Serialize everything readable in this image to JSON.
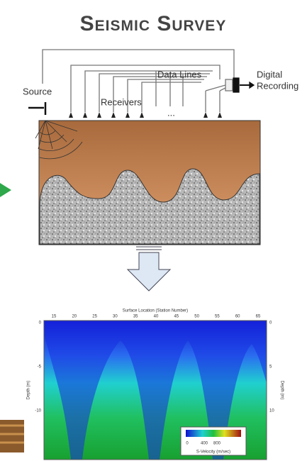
{
  "header": {
    "title": "Seismic Survey"
  },
  "diagram": {
    "source": "Source",
    "receivers": "Receivers",
    "data_lines": "Data Lines",
    "digital": "Digital",
    "recording": "Recording",
    "ellipsis": "..."
  },
  "section": {
    "x_label": "Surface Location (Station Number)",
    "x_ticks": [
      "15",
      "20",
      "25",
      "30",
      "35",
      "40",
      "45",
      "50",
      "55",
      "60",
      "65"
    ],
    "y_label_left": "Depth (m)",
    "y_ticks_left": [
      "0",
      "-5",
      "-10"
    ],
    "y_label_right": "Depth (m)",
    "y_ticks_right": [
      "0",
      "5",
      "10"
    ],
    "legend": {
      "ticks": [
        "0",
        "400",
        "800"
      ],
      "label": "S-Velocity (m/sec)"
    }
  }
}
